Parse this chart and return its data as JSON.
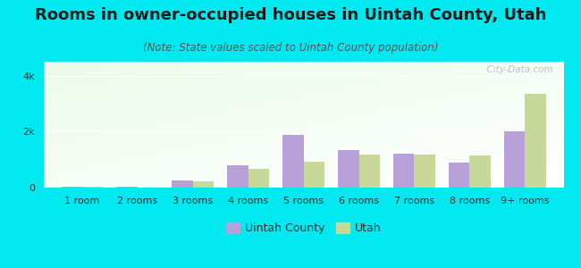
{
  "title": "Rooms in owner-occupied houses in Uintah County, Utah",
  "subtitle": "(Note: State values scaled to Uintah County population)",
  "categories": [
    "1 room",
    "2 rooms",
    "3 rooms",
    "4 rooms",
    "5 rooms",
    "6 rooms",
    "7 rooms",
    "8 rooms",
    "9+ rooms"
  ],
  "uintah_values": [
    35,
    18,
    270,
    810,
    1870,
    1330,
    1220,
    880,
    2020
  ],
  "utah_values": [
    18,
    12,
    210,
    680,
    930,
    1190,
    1190,
    1140,
    3350
  ],
  "uintah_color": "#b8a0d8",
  "utah_color": "#c8d898",
  "background_color": "#00e8f0",
  "ylim": [
    0,
    4500
  ],
  "yticks": [
    0,
    2000,
    4000
  ],
  "ytick_labels": [
    "0",
    "2k",
    "4k"
  ],
  "bar_width": 0.38,
  "watermark": "  City-Data.com",
  "legend_labels": [
    "Uintah County",
    "Utah"
  ],
  "title_fontsize": 13,
  "subtitle_fontsize": 8.5,
  "tick_fontsize": 8
}
